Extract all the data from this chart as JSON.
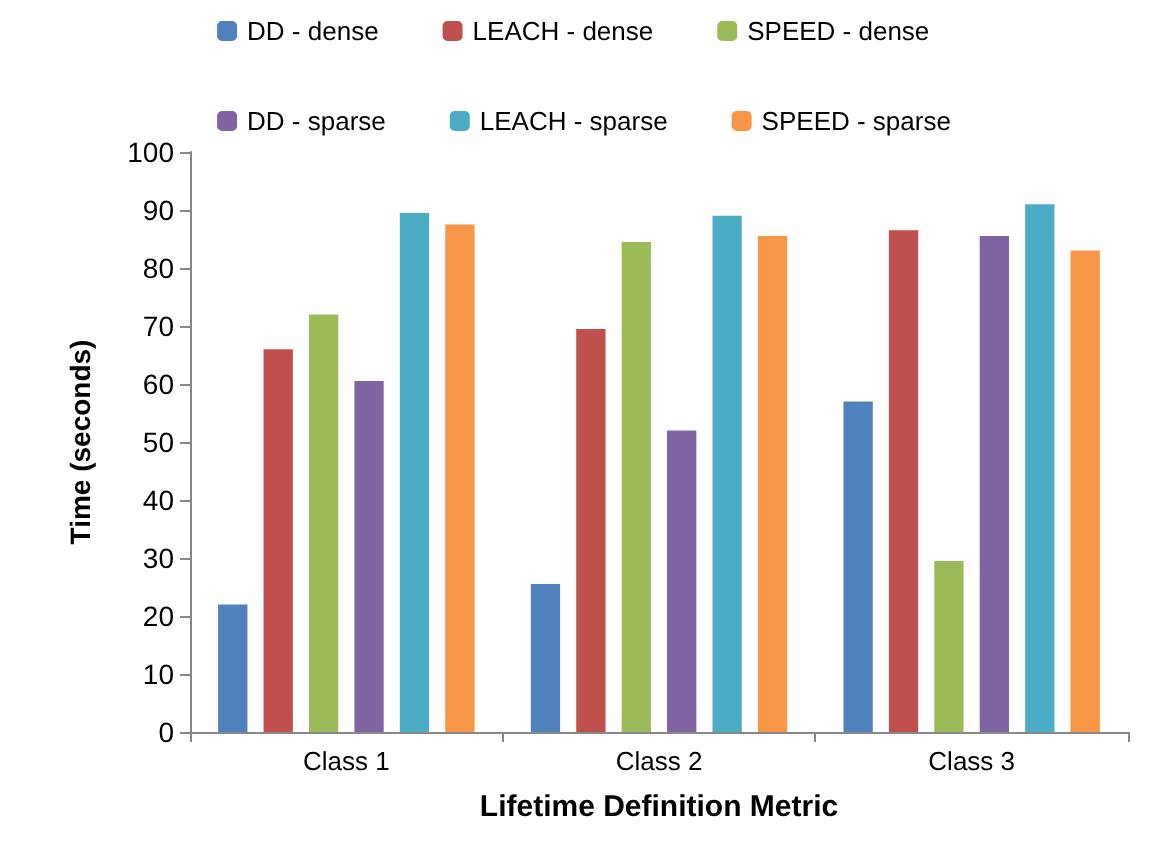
{
  "chart_data": {
    "type": "bar",
    "xlabel": "Lifetime Definition Metric",
    "ylabel": "Time (seconds)",
    "categories": [
      "Class 1",
      "Class 2",
      "Class 3"
    ],
    "series": [
      {
        "name": "DD - dense",
        "color": "#4f81bd",
        "values": [
          22,
          25.5,
          57
        ]
      },
      {
        "name": "LEACH - dense",
        "color": "#c0504d",
        "values": [
          66,
          69.5,
          86.5
        ]
      },
      {
        "name": "SPEED - dense",
        "color": "#9bbb59",
        "values": [
          72,
          84.5,
          29.5
        ]
      },
      {
        "name": "DD - sparse",
        "color": "#8064a2",
        "values": [
          60.5,
          52,
          85.5
        ]
      },
      {
        "name": "LEACH - sparse",
        "color": "#4bacc6",
        "values": [
          89.5,
          89,
          91
        ]
      },
      {
        "name": "SPEED - sparse",
        "color": "#f79646",
        "values": [
          87.5,
          85.5,
          83
        ]
      }
    ],
    "ylim": [
      0,
      100
    ],
    "yticks": [
      0,
      10,
      20,
      30,
      40,
      50,
      60,
      70,
      80,
      90,
      100
    ],
    "grid": false,
    "legend": "top"
  }
}
